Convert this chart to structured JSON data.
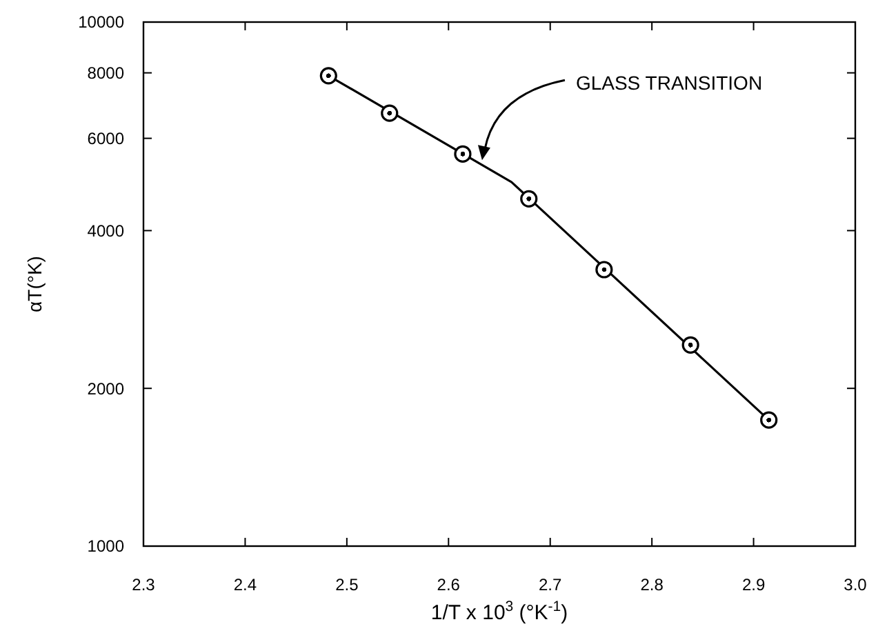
{
  "chart_data": {
    "type": "scatter",
    "xlabel": "1/T x 10$^{3}$ (°K$^{-1}$)",
    "ylabel": "αT(°K)",
    "log": "y",
    "xlim": [
      2.3,
      3.0
    ],
    "xticks": [
      2.3,
      2.4,
      2.5,
      2.6,
      2.7,
      2.8,
      2.9,
      {
        "value": 3.0,
        "label": "3.0"
      }
    ],
    "ylim": [
      1000,
      10000
    ],
    "yticks": [
      1000,
      2000,
      4000,
      6000,
      8000,
      10000
    ],
    "grid": false,
    "series": [
      {
        "color": "#000000",
        "marker": "circle",
        "x": [
          2.482,
          2.542,
          2.614,
          2.679,
          2.753,
          2.838,
          2.915
        ],
        "values": [
          7900,
          6700,
          5600,
          4600,
          3370,
          2420,
          1740
        ]
      },
      {
        "type": "line",
        "color": "#000000",
        "x": [
          2.482,
          2.662,
          2.915
        ],
        "values": [
          7900,
          4950,
          1740
        ]
      }
    ],
    "annotations": [
      {
        "text": "GLASS TRANSITION",
        "x": 2.633,
        "y": 5450
      }
    ]
  }
}
